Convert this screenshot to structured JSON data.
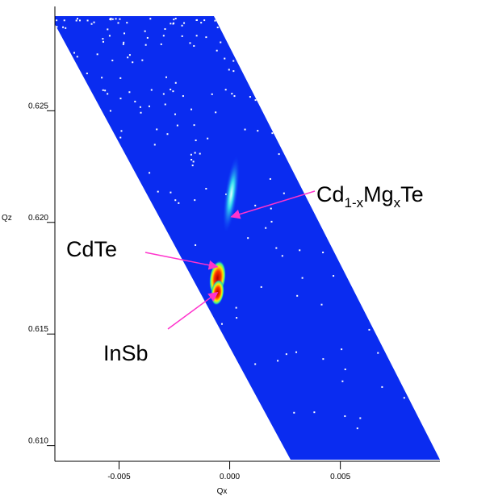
{
  "chart_data": {
    "type": "map",
    "xlabel": "Qx",
    "ylabel": "Qz",
    "xlim": [
      -0.0079,
      0.0095
    ],
    "ylim": [
      0.6093,
      0.6296
    ],
    "xticks": [
      -0.005,
      {
        "value": 0,
        "label": "0.000"
      },
      0.005
    ],
    "yticks": [
      {
        "value": 0.61,
        "label": "0.610"
      },
      0.615,
      {
        "value": 0.62,
        "label": "0.620"
      },
      0.625
    ],
    "annotations": [
      {
        "parts": [
          "Cd",
          "1-x",
          "Mg",
          "x",
          "Te"
        ],
        "x": 7e-05,
        "y": 0.62025,
        "color": "#ff33cc"
      },
      {
        "parts": [
          "CdTe"
        ],
        "x": -0.00055,
        "y": 0.61801,
        "color": "#ff33cc"
      },
      {
        "parts": [
          "InSb"
        ],
        "x": -0.00055,
        "y": 0.61686,
        "color": "#ff33cc"
      }
    ]
  }
}
